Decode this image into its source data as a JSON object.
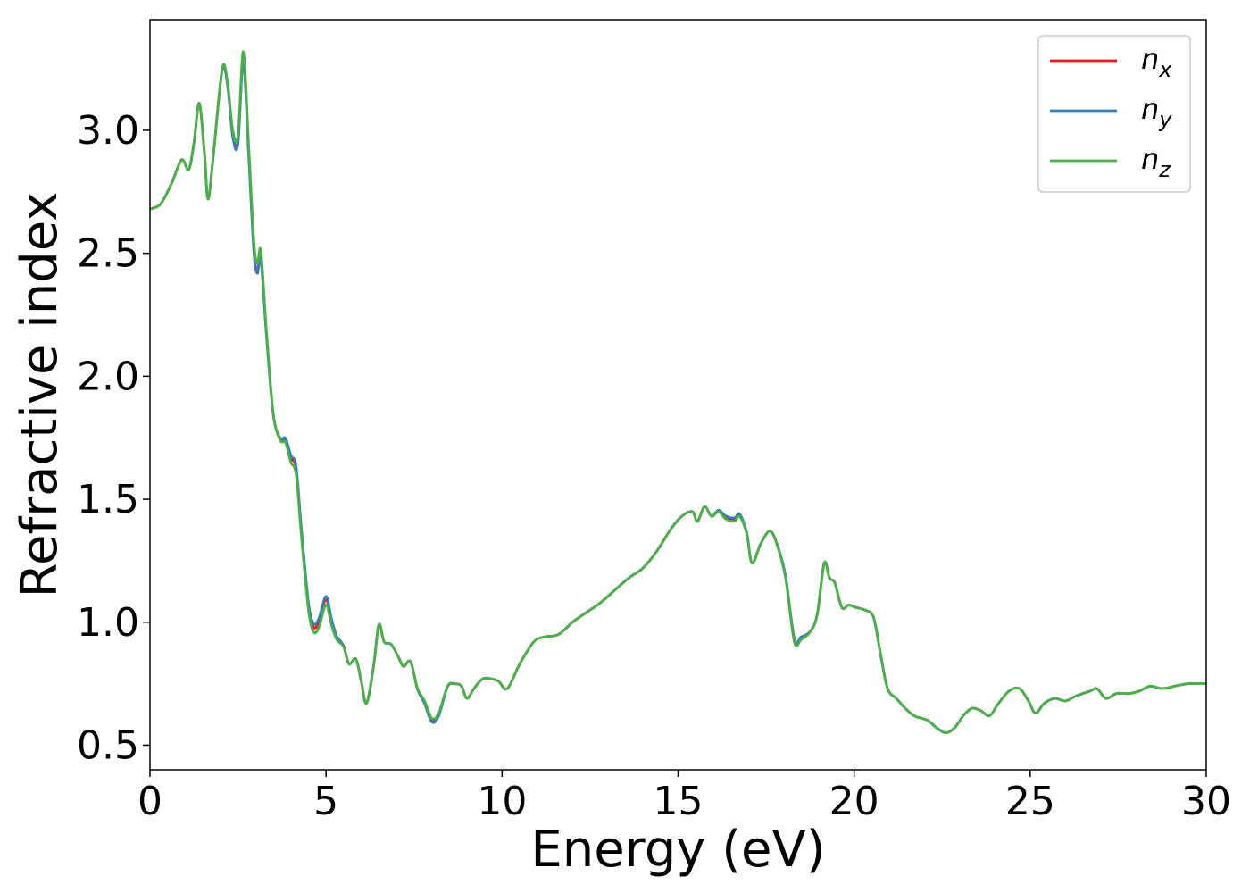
{
  "chart_data": {
    "type": "line",
    "title": "",
    "xlabel": "Energy (eV)",
    "ylabel": "Refractive index",
    "xlim": [
      0,
      30
    ],
    "ylim": [
      0.4,
      3.45
    ],
    "xticks": [
      "0",
      "5",
      "10",
      "15",
      "20",
      "25",
      "30"
    ],
    "yticks": [
      "0.5",
      "1.0",
      "1.5",
      "2.0",
      "2.5",
      "3.0"
    ],
    "grid": false,
    "legend_position": "top-right",
    "series": [
      {
        "name": "n",
        "subscript": "x",
        "color": "#e41a1c",
        "offsets": [
          [
            2.5,
            -0.02
          ],
          [
            3.0,
            -0.03
          ],
          [
            4.1,
            0.02
          ],
          [
            4.6,
            0.01
          ],
          [
            5.0,
            0.02
          ],
          [
            8.0,
            -0.01
          ],
          [
            16.5,
            0.01
          ],
          [
            18.3,
            0.01
          ]
        ]
      },
      {
        "name": "n",
        "subscript": "y",
        "color": "#377eb8",
        "offsets": [
          [
            2.5,
            -0.03
          ],
          [
            3.0,
            -0.04
          ],
          [
            4.1,
            0.03
          ],
          [
            4.6,
            0.02
          ],
          [
            5.0,
            0.03
          ],
          [
            8.0,
            -0.015
          ],
          [
            16.5,
            0.015
          ],
          [
            18.3,
            0.015
          ]
        ]
      },
      {
        "name": "n",
        "subscript": "z",
        "color": "#4daf4a",
        "offsets": []
      }
    ],
    "base_curve": [
      [
        0.0,
        2.68
      ],
      [
        0.3,
        2.7
      ],
      [
        0.6,
        2.78
      ],
      [
        0.9,
        2.88
      ],
      [
        1.1,
        2.84
      ],
      [
        1.25,
        2.95
      ],
      [
        1.4,
        3.11
      ],
      [
        1.55,
        2.9
      ],
      [
        1.65,
        2.72
      ],
      [
        1.8,
        2.9
      ],
      [
        2.05,
        3.25
      ],
      [
        2.2,
        3.2
      ],
      [
        2.35,
        3.0
      ],
      [
        2.5,
        2.98
      ],
      [
        2.65,
        3.32
      ],
      [
        2.8,
        2.95
      ],
      [
        2.95,
        2.55
      ],
      [
        3.05,
        2.46
      ],
      [
        3.15,
        2.51
      ],
      [
        3.3,
        2.2
      ],
      [
        3.5,
        1.85
      ],
      [
        3.7,
        1.74
      ],
      [
        3.85,
        1.73
      ],
      [
        4.0,
        1.65
      ],
      [
        4.15,
        1.6
      ],
      [
        4.3,
        1.35
      ],
      [
        4.5,
        1.05
      ],
      [
        4.65,
        0.96
      ],
      [
        4.8,
        0.98
      ],
      [
        5.0,
        1.07
      ],
      [
        5.15,
        0.99
      ],
      [
        5.3,
        0.93
      ],
      [
        5.5,
        0.9
      ],
      [
        5.65,
        0.83
      ],
      [
        5.85,
        0.85
      ],
      [
        6.0,
        0.76
      ],
      [
        6.15,
        0.67
      ],
      [
        6.35,
        0.82
      ],
      [
        6.5,
        0.99
      ],
      [
        6.65,
        0.92
      ],
      [
        6.85,
        0.91
      ],
      [
        7.05,
        0.86
      ],
      [
        7.2,
        0.82
      ],
      [
        7.4,
        0.84
      ],
      [
        7.6,
        0.73
      ],
      [
        7.8,
        0.68
      ],
      [
        8.0,
        0.61
      ],
      [
        8.2,
        0.63
      ],
      [
        8.45,
        0.74
      ],
      [
        8.65,
        0.75
      ],
      [
        8.85,
        0.74
      ],
      [
        9.0,
        0.69
      ],
      [
        9.2,
        0.73
      ],
      [
        9.45,
        0.77
      ],
      [
        9.7,
        0.77
      ],
      [
        9.9,
        0.76
      ],
      [
        10.15,
        0.73
      ],
      [
        10.5,
        0.83
      ],
      [
        10.9,
        0.92
      ],
      [
        11.2,
        0.94
      ],
      [
        11.6,
        0.95
      ],
      [
        12.0,
        1.0
      ],
      [
        12.4,
        1.04
      ],
      [
        12.8,
        1.08
      ],
      [
        13.2,
        1.13
      ],
      [
        13.6,
        1.18
      ],
      [
        14.0,
        1.22
      ],
      [
        14.4,
        1.29
      ],
      [
        14.8,
        1.38
      ],
      [
        15.1,
        1.43
      ],
      [
        15.4,
        1.45
      ],
      [
        15.55,
        1.41
      ],
      [
        15.75,
        1.47
      ],
      [
        15.95,
        1.43
      ],
      [
        16.15,
        1.45
      ],
      [
        16.35,
        1.42
      ],
      [
        16.6,
        1.41
      ],
      [
        16.75,
        1.43
      ],
      [
        16.95,
        1.36
      ],
      [
        17.1,
        1.24
      ],
      [
        17.35,
        1.32
      ],
      [
        17.6,
        1.37
      ],
      [
        17.8,
        1.32
      ],
      [
        18.05,
        1.18
      ],
      [
        18.3,
        0.92
      ],
      [
        18.5,
        0.93
      ],
      [
        18.75,
        0.96
      ],
      [
        18.95,
        1.03
      ],
      [
        19.15,
        1.24
      ],
      [
        19.3,
        1.18
      ],
      [
        19.45,
        1.16
      ],
      [
        19.65,
        1.06
      ],
      [
        19.85,
        1.07
      ],
      [
        20.05,
        1.06
      ],
      [
        20.3,
        1.05
      ],
      [
        20.55,
        1.02
      ],
      [
        20.75,
        0.87
      ],
      [
        20.95,
        0.73
      ],
      [
        21.2,
        0.69
      ],
      [
        21.45,
        0.65
      ],
      [
        21.7,
        0.62
      ],
      [
        21.9,
        0.61
      ],
      [
        22.1,
        0.6
      ],
      [
        22.35,
        0.57
      ],
      [
        22.6,
        0.55
      ],
      [
        22.85,
        0.57
      ],
      [
        23.1,
        0.62
      ],
      [
        23.35,
        0.65
      ],
      [
        23.6,
        0.64
      ],
      [
        23.85,
        0.62
      ],
      [
        24.1,
        0.67
      ],
      [
        24.4,
        0.72
      ],
      [
        24.7,
        0.73
      ],
      [
        24.95,
        0.68
      ],
      [
        25.15,
        0.63
      ],
      [
        25.4,
        0.67
      ],
      [
        25.7,
        0.69
      ],
      [
        26.0,
        0.68
      ],
      [
        26.3,
        0.7
      ],
      [
        26.7,
        0.72
      ],
      [
        26.9,
        0.73
      ],
      [
        27.15,
        0.69
      ],
      [
        27.45,
        0.71
      ],
      [
        27.8,
        0.71
      ],
      [
        28.1,
        0.72
      ],
      [
        28.4,
        0.74
      ],
      [
        28.75,
        0.73
      ],
      [
        29.1,
        0.74
      ],
      [
        29.5,
        0.75
      ],
      [
        30.0,
        0.75
      ]
    ]
  }
}
